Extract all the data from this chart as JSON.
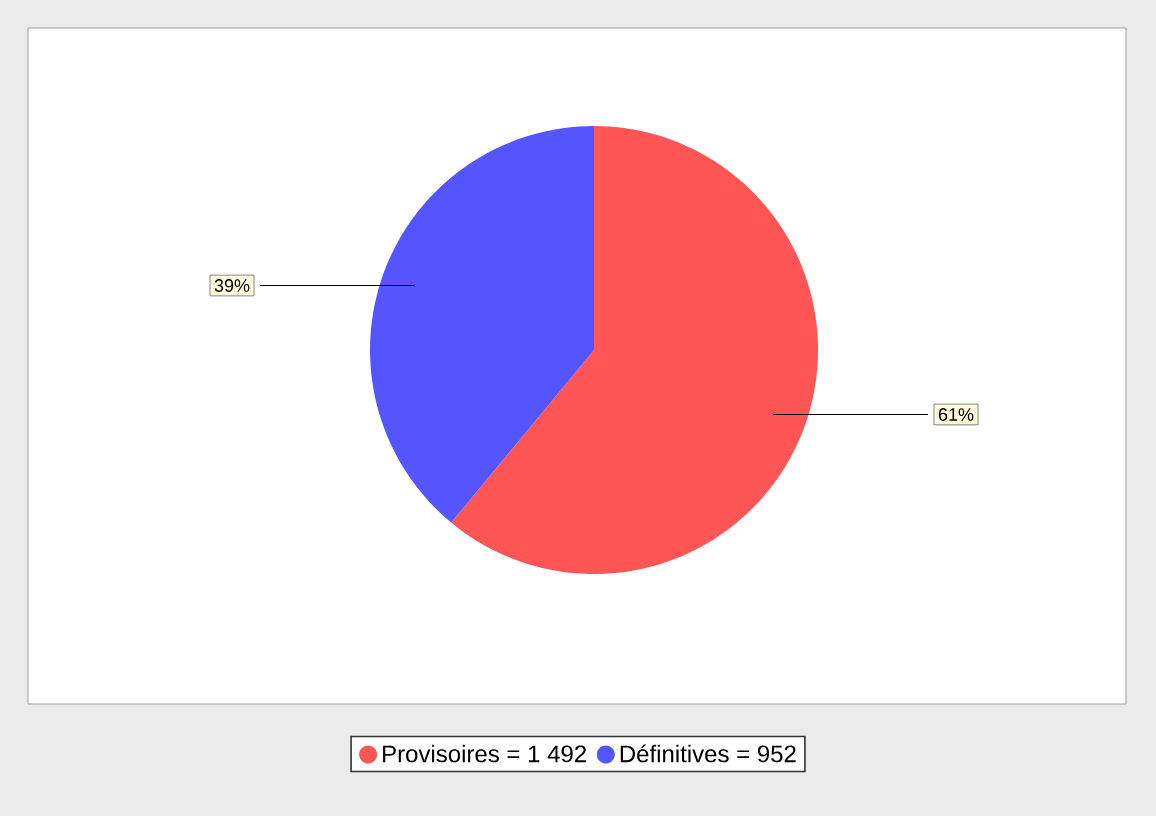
{
  "chart_data": {
    "type": "pie",
    "categories": [
      "Provisoires = 1 492",
      "Définitives = 952"
    ],
    "values": [
      61,
      39
    ],
    "value_labels": [
      "61%",
      "39%"
    ],
    "colors": [
      "#ff5555",
      "#5555ff"
    ],
    "legend": "bottom"
  }
}
